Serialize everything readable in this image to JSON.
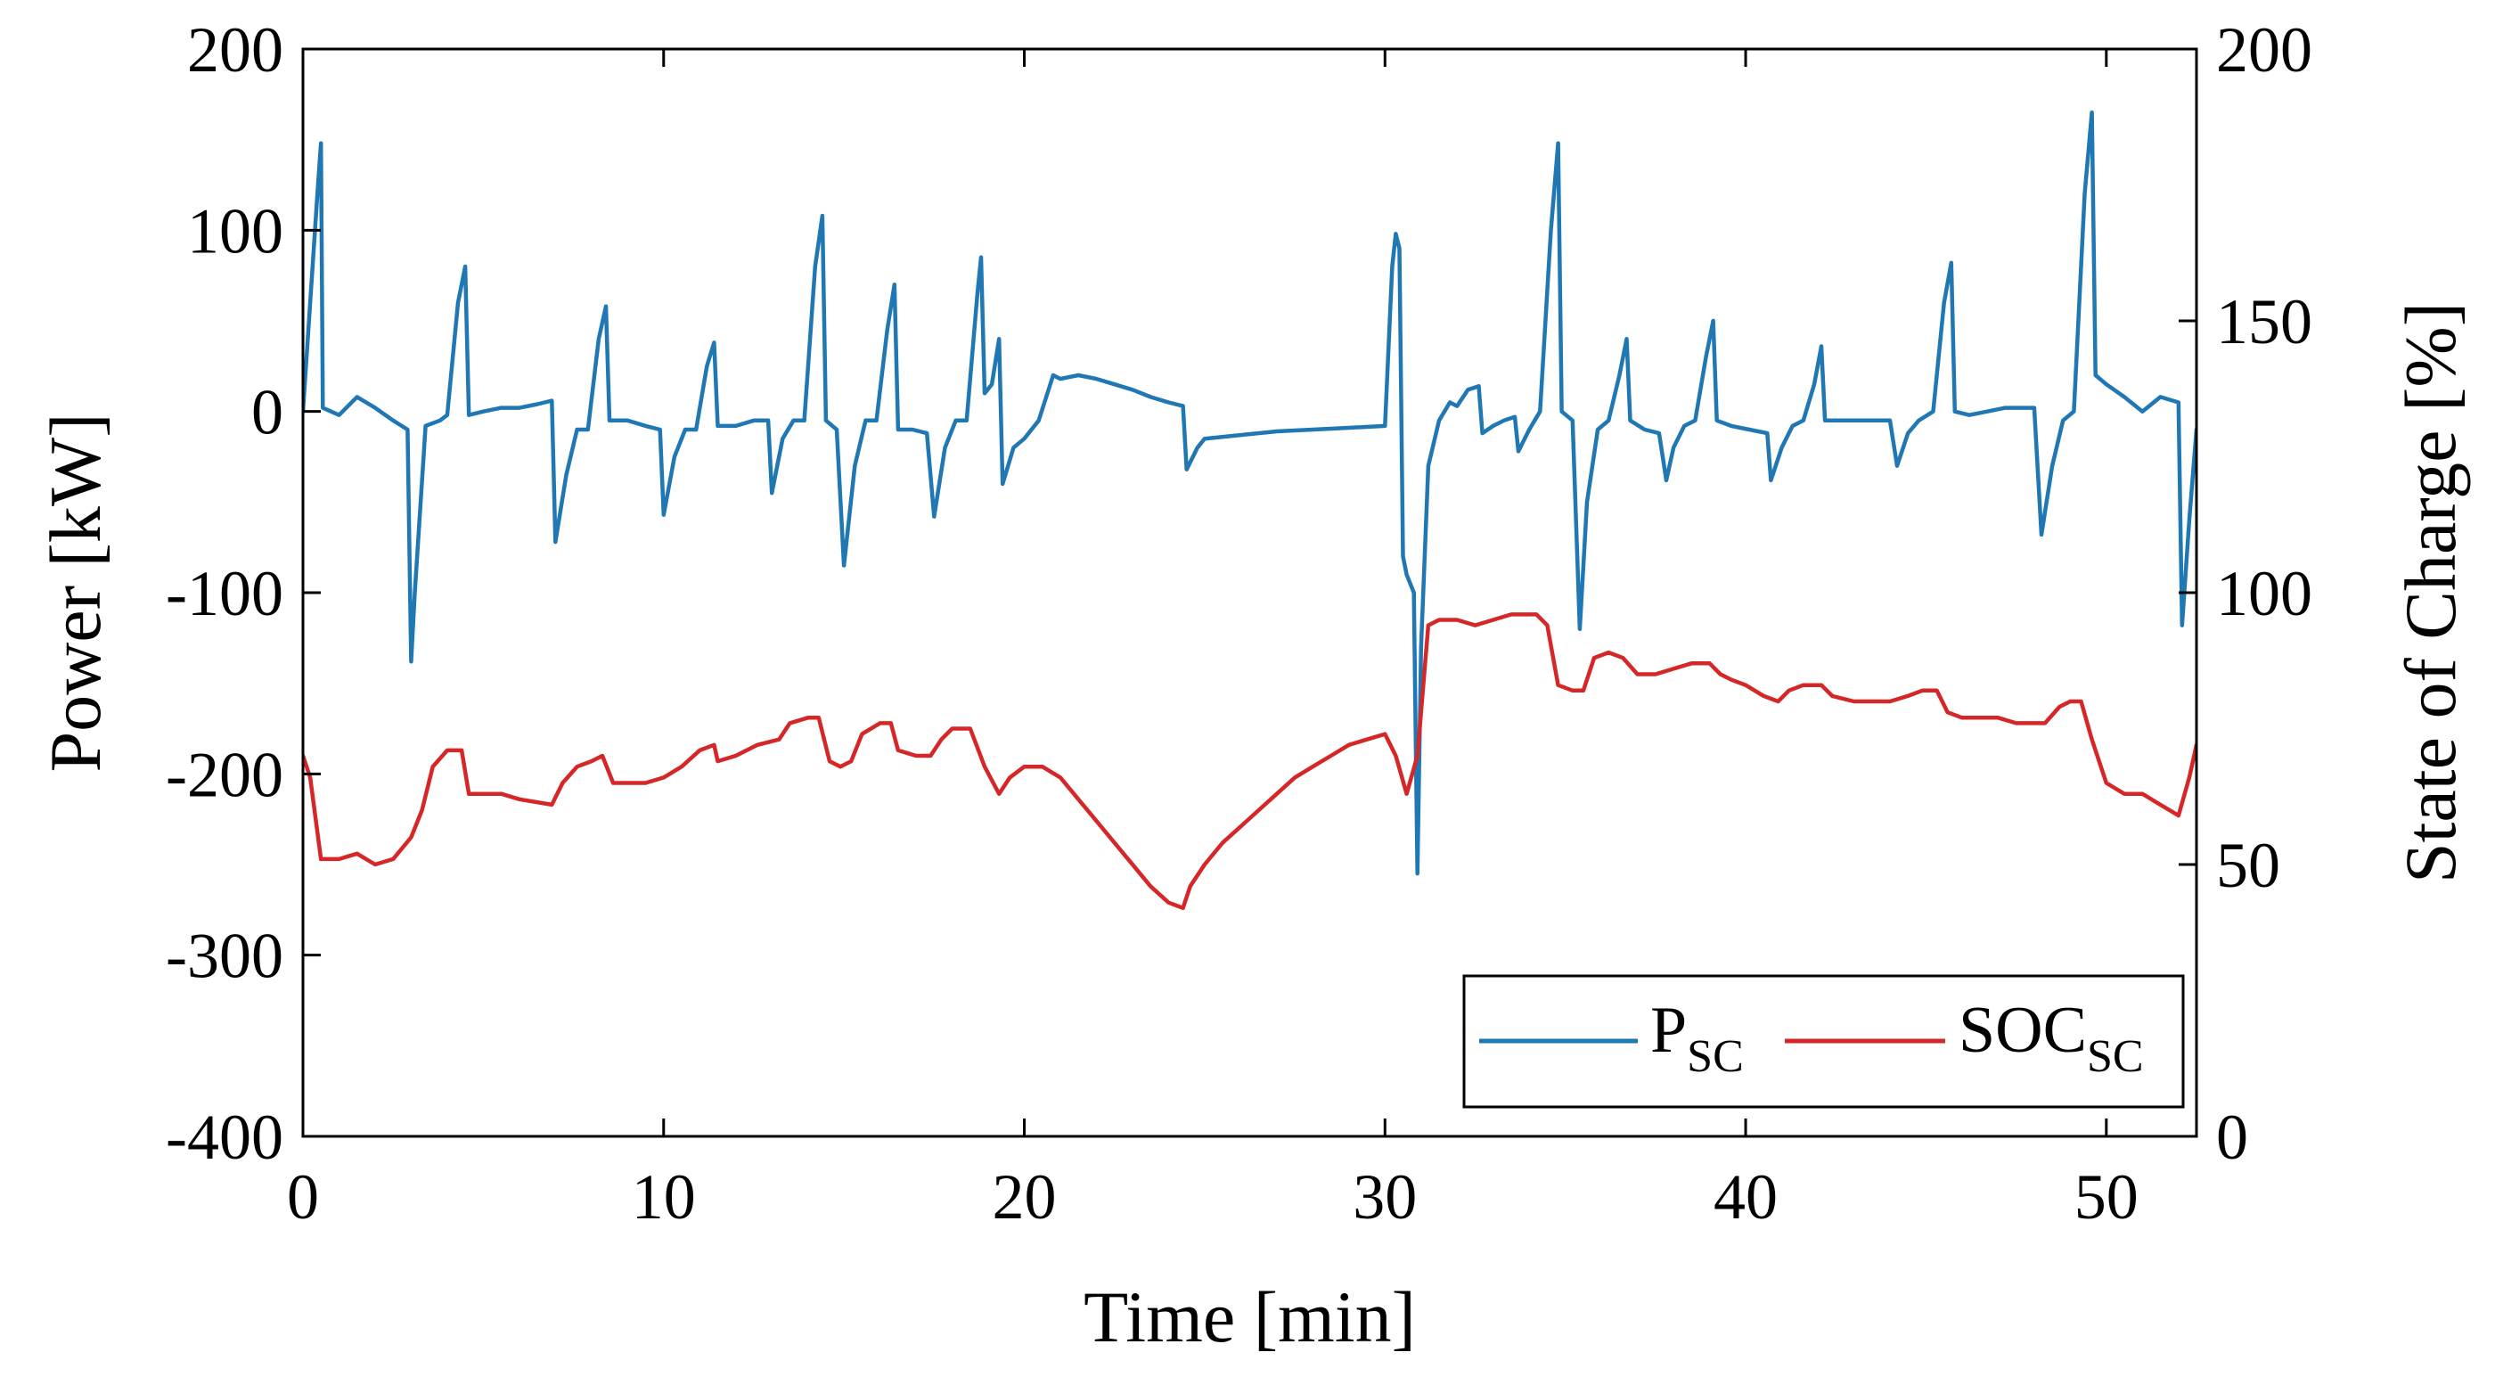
{
  "chart_data": {
    "type": "line",
    "title": "",
    "xlabel": "Time [min]",
    "ylabel_left": "Power [kW]",
    "ylabel_right": "State of Charge [%]",
    "xlim": [
      0,
      52.5
    ],
    "ylim_left": [
      -400,
      200
    ],
    "ylim_right": [
      0,
      200
    ],
    "xticks": [
      0,
      10,
      20,
      30,
      40,
      50
    ],
    "xtick_labels": [
      "0",
      "10",
      "20",
      "30",
      "40",
      "50"
    ],
    "yticks_left": [
      -400,
      -300,
      -200,
      -100,
      0,
      100,
      200
    ],
    "ytick_labels_left": [
      "-400",
      "-300",
      "-200",
      "-100",
      "0",
      "100",
      "200"
    ],
    "yticks_right": [
      0,
      50,
      100,
      150,
      200
    ],
    "ytick_labels_right": [
      "0",
      "50",
      "100",
      "150",
      "200"
    ],
    "grid": false,
    "legend_position": "bottom-right",
    "series": [
      {
        "name": "P",
        "subscript": "SC",
        "axis": "left",
        "color": "#1f77b4",
        "points": [
          [
            0,
            0
          ],
          [
            0.2,
            60
          ],
          [
            0.4,
            120
          ],
          [
            0.5,
            148
          ],
          [
            0.55,
            2
          ],
          [
            1,
            -2
          ],
          [
            1.5,
            8
          ],
          [
            2,
            2
          ],
          [
            2.5,
            -5
          ],
          [
            2.9,
            -10
          ],
          [
            3,
            -138
          ],
          [
            3.1,
            -100
          ],
          [
            3.4,
            -8
          ],
          [
            3.8,
            -5
          ],
          [
            4,
            -2
          ],
          [
            4.3,
            60
          ],
          [
            4.5,
            80
          ],
          [
            4.6,
            -2
          ],
          [
            5,
            0
          ],
          [
            5.5,
            2
          ],
          [
            6,
            2
          ],
          [
            6.5,
            4
          ],
          [
            6.9,
            6
          ],
          [
            7,
            -72
          ],
          [
            7.3,
            -35
          ],
          [
            7.6,
            -10
          ],
          [
            7.9,
            -10
          ],
          [
            8.2,
            40
          ],
          [
            8.4,
            58
          ],
          [
            8.5,
            -5
          ],
          [
            9,
            -5
          ],
          [
            9.5,
            -8
          ],
          [
            9.9,
            -10
          ],
          [
            10,
            -57
          ],
          [
            10.3,
            -25
          ],
          [
            10.6,
            -10
          ],
          [
            10.9,
            -10
          ],
          [
            11.2,
            25
          ],
          [
            11.4,
            38
          ],
          [
            11.5,
            -8
          ],
          [
            12,
            -8
          ],
          [
            12.5,
            -5
          ],
          [
            12.9,
            -5
          ],
          [
            13,
            -45
          ],
          [
            13.3,
            -15
          ],
          [
            13.6,
            -5
          ],
          [
            13.9,
            -5
          ],
          [
            14.2,
            80
          ],
          [
            14.4,
            108
          ],
          [
            14.5,
            -5
          ],
          [
            14.8,
            -10
          ],
          [
            15,
            -85
          ],
          [
            15.3,
            -30
          ],
          [
            15.6,
            -5
          ],
          [
            15.9,
            -5
          ],
          [
            16.2,
            45
          ],
          [
            16.4,
            70
          ],
          [
            16.5,
            -10
          ],
          [
            16.9,
            -10
          ],
          [
            17.3,
            -12
          ],
          [
            17.5,
            -58
          ],
          [
            17.8,
            -20
          ],
          [
            18.1,
            -5
          ],
          [
            18.4,
            -5
          ],
          [
            18.7,
            65
          ],
          [
            18.8,
            85
          ],
          [
            18.9,
            10
          ],
          [
            19.1,
            15
          ],
          [
            19.3,
            40
          ],
          [
            19.4,
            -40
          ],
          [
            19.7,
            -20
          ],
          [
            20,
            -15
          ],
          [
            20.4,
            -5
          ],
          [
            20.8,
            20
          ],
          [
            21,
            18
          ],
          [
            21.5,
            20
          ],
          [
            22,
            18
          ],
          [
            22.5,
            15
          ],
          [
            23,
            12
          ],
          [
            23.5,
            8
          ],
          [
            24,
            5
          ],
          [
            24.4,
            3
          ],
          [
            24.5,
            -32
          ],
          [
            24.8,
            -20
          ],
          [
            25,
            -15
          ],
          [
            26,
            -13
          ],
          [
            27,
            -11
          ],
          [
            28,
            -10
          ],
          [
            29,
            -9
          ],
          [
            30,
            -8
          ],
          [
            30.2,
            80
          ],
          [
            30.3,
            98
          ],
          [
            30.4,
            90
          ],
          [
            30.5,
            -80
          ],
          [
            30.6,
            -90
          ],
          [
            30.8,
            -100
          ],
          [
            30.9,
            -255
          ],
          [
            31,
            -130
          ],
          [
            31.2,
            -30
          ],
          [
            31.5,
            -5
          ],
          [
            31.8,
            5
          ],
          [
            32,
            3
          ],
          [
            32.3,
            12
          ],
          [
            32.6,
            14
          ],
          [
            32.7,
            -12
          ],
          [
            33,
            -8
          ],
          [
            33.3,
            -5
          ],
          [
            33.6,
            -3
          ],
          [
            33.7,
            -22
          ],
          [
            34,
            -10
          ],
          [
            34.3,
            0
          ],
          [
            34.6,
            100
          ],
          [
            34.8,
            148
          ],
          [
            34.9,
            0
          ],
          [
            35.2,
            -5
          ],
          [
            35.4,
            -120
          ],
          [
            35.6,
            -50
          ],
          [
            35.9,
            -10
          ],
          [
            36.2,
            -5
          ],
          [
            36.5,
            20
          ],
          [
            36.7,
            40
          ],
          [
            36.8,
            -5
          ],
          [
            37.2,
            -10
          ],
          [
            37.6,
            -12
          ],
          [
            37.8,
            -38
          ],
          [
            38,
            -20
          ],
          [
            38.3,
            -8
          ],
          [
            38.6,
            -5
          ],
          [
            38.9,
            30
          ],
          [
            39.1,
            50
          ],
          [
            39.2,
            -5
          ],
          [
            39.6,
            -8
          ],
          [
            40.1,
            -10
          ],
          [
            40.6,
            -12
          ],
          [
            40.7,
            -38
          ],
          [
            41,
            -20
          ],
          [
            41.3,
            -8
          ],
          [
            41.6,
            -5
          ],
          [
            41.9,
            15
          ],
          [
            42.1,
            36
          ],
          [
            42.2,
            -5
          ],
          [
            42.6,
            -5
          ],
          [
            43,
            -5
          ],
          [
            43.5,
            -5
          ],
          [
            44,
            -5
          ],
          [
            44.2,
            -30
          ],
          [
            44.5,
            -12
          ],
          [
            44.8,
            -5
          ],
          [
            45.2,
            0
          ],
          [
            45.5,
            60
          ],
          [
            45.7,
            82
          ],
          [
            45.8,
            0
          ],
          [
            46.2,
            -2
          ],
          [
            46.7,
            0
          ],
          [
            47.2,
            2
          ],
          [
            47.7,
            2
          ],
          [
            48,
            2
          ],
          [
            48.2,
            -68
          ],
          [
            48.5,
            -30
          ],
          [
            48.8,
            -5
          ],
          [
            49.1,
            0
          ],
          [
            49.4,
            120
          ],
          [
            49.6,
            165
          ],
          [
            49.7,
            20
          ],
          [
            50,
            15
          ],
          [
            50.5,
            8
          ],
          [
            51,
            0
          ],
          [
            51.5,
            8
          ],
          [
            52,
            5
          ],
          [
            52.1,
            -118
          ],
          [
            52.3,
            -60
          ],
          [
            52.5,
            -10
          ]
        ]
      },
      {
        "name": "SOC",
        "subscript": "SC",
        "axis": "right",
        "color": "#d62728",
        "points": [
          [
            0,
            70
          ],
          [
            0.2,
            66
          ],
          [
            0.5,
            51
          ],
          [
            1,
            51
          ],
          [
            1.5,
            52
          ],
          [
            2,
            50
          ],
          [
            2.5,
            51
          ],
          [
            3,
            55
          ],
          [
            3.3,
            60
          ],
          [
            3.6,
            68
          ],
          [
            4,
            71
          ],
          [
            4.4,
            71
          ],
          [
            4.6,
            63
          ],
          [
            5.5,
            63
          ],
          [
            6,
            62
          ],
          [
            6.9,
            61
          ],
          [
            7.2,
            65
          ],
          [
            7.6,
            68
          ],
          [
            8,
            69
          ],
          [
            8.3,
            70
          ],
          [
            8.6,
            65
          ],
          [
            9.5,
            65
          ],
          [
            10,
            66
          ],
          [
            10.5,
            68
          ],
          [
            11,
            71
          ],
          [
            11.4,
            72
          ],
          [
            11.5,
            69
          ],
          [
            12,
            70
          ],
          [
            12.6,
            72
          ],
          [
            13.2,
            73
          ],
          [
            13.5,
            76
          ],
          [
            14,
            77
          ],
          [
            14.3,
            77
          ],
          [
            14.6,
            69
          ],
          [
            14.9,
            68
          ],
          [
            15.2,
            69
          ],
          [
            15.5,
            74
          ],
          [
            16,
            76
          ],
          [
            16.3,
            76
          ],
          [
            16.5,
            71
          ],
          [
            17,
            70
          ],
          [
            17.4,
            70
          ],
          [
            17.7,
            73
          ],
          [
            18,
            75
          ],
          [
            18.5,
            75
          ],
          [
            18.9,
            68
          ],
          [
            19.3,
            63
          ],
          [
            19.6,
            66
          ],
          [
            20,
            68
          ],
          [
            20.5,
            68
          ],
          [
            21,
            66
          ],
          [
            21.5,
            62
          ],
          [
            22,
            58
          ],
          [
            22.5,
            54
          ],
          [
            23,
            50
          ],
          [
            23.5,
            46
          ],
          [
            24,
            43
          ],
          [
            24.4,
            42
          ],
          [
            24.6,
            46
          ],
          [
            25,
            50
          ],
          [
            25.5,
            54
          ],
          [
            26,
            57
          ],
          [
            26.5,
            60
          ],
          [
            27,
            63
          ],
          [
            27.5,
            66
          ],
          [
            28,
            68
          ],
          [
            28.5,
            70
          ],
          [
            29,
            72
          ],
          [
            29.5,
            73
          ],
          [
            30,
            74
          ],
          [
            30.3,
            70
          ],
          [
            30.6,
            63
          ],
          [
            30.9,
            70
          ],
          [
            31.2,
            94
          ],
          [
            31.5,
            95
          ],
          [
            32,
            95
          ],
          [
            32.5,
            94
          ],
          [
            33,
            95
          ],
          [
            33.5,
            96
          ],
          [
            33.8,
            96
          ],
          [
            34.2,
            96
          ],
          [
            34.5,
            94
          ],
          [
            34.8,
            83
          ],
          [
            35.2,
            82
          ],
          [
            35.5,
            82
          ],
          [
            35.8,
            88
          ],
          [
            36.2,
            89
          ],
          [
            36.6,
            88
          ],
          [
            37,
            85
          ],
          [
            37.5,
            85
          ],
          [
            38,
            86
          ],
          [
            38.5,
            87
          ],
          [
            39,
            87
          ],
          [
            39.3,
            85
          ],
          [
            39.6,
            84
          ],
          [
            40,
            83
          ],
          [
            40.5,
            81
          ],
          [
            40.9,
            80
          ],
          [
            41.2,
            82
          ],
          [
            41.6,
            83
          ],
          [
            42.1,
            83
          ],
          [
            42.4,
            81
          ],
          [
            43,
            80
          ],
          [
            43.5,
            80
          ],
          [
            44,
            80
          ],
          [
            44.5,
            81
          ],
          [
            44.9,
            82
          ],
          [
            45.3,
            82
          ],
          [
            45.6,
            78
          ],
          [
            46,
            77
          ],
          [
            46.5,
            77
          ],
          [
            47,
            77
          ],
          [
            47.5,
            76
          ],
          [
            48,
            76
          ],
          [
            48.3,
            76
          ],
          [
            48.7,
            79
          ],
          [
            49,
            80
          ],
          [
            49.3,
            80
          ],
          [
            49.6,
            73
          ],
          [
            50,
            65
          ],
          [
            50.5,
            63
          ],
          [
            51,
            63
          ],
          [
            51.5,
            61
          ],
          [
            52,
            59
          ],
          [
            52.3,
            66
          ],
          [
            52.5,
            72
          ]
        ]
      }
    ]
  }
}
